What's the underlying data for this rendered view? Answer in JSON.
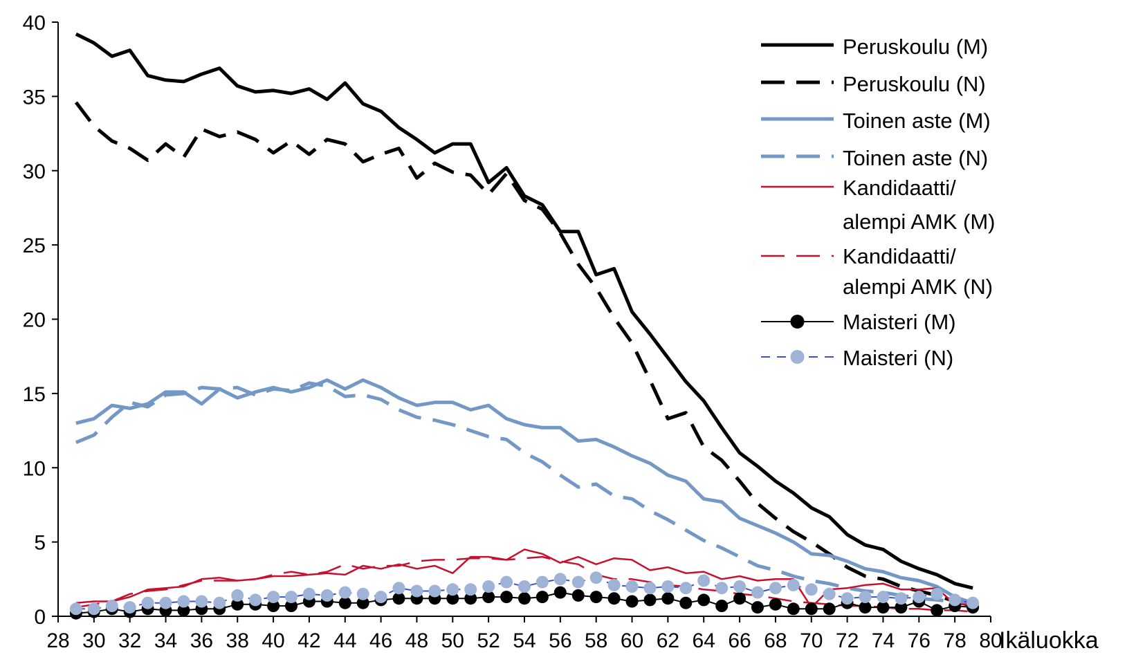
{
  "chart_data": {
    "type": "line",
    "title": "",
    "xlabel": "Ikäluokka",
    "ylabel": "",
    "xlim": [
      28,
      80
    ],
    "ylim": [
      0,
      40
    ],
    "x_ticks": [
      28,
      30,
      32,
      34,
      36,
      38,
      40,
      42,
      44,
      46,
      48,
      50,
      52,
      54,
      56,
      58,
      60,
      62,
      64,
      66,
      68,
      70,
      72,
      74,
      76,
      78,
      80
    ],
    "y_ticks": [
      0,
      5,
      10,
      15,
      20,
      25,
      30,
      35,
      40
    ],
    "grid": false,
    "legend_position": "top-right",
    "x": [
      29,
      30,
      31,
      32,
      33,
      34,
      35,
      36,
      37,
      38,
      39,
      40,
      41,
      42,
      43,
      44,
      45,
      46,
      47,
      48,
      49,
      50,
      51,
      52,
      53,
      54,
      55,
      56,
      57,
      58,
      59,
      60,
      61,
      62,
      63,
      64,
      65,
      66,
      67,
      68,
      69,
      70,
      71,
      72,
      73,
      74,
      75,
      76,
      77,
      78,
      79
    ],
    "series": [
      {
        "name": "Peruskoulu (M)",
        "color": "#000000",
        "dash": "solid",
        "width": 5,
        "marker": "none",
        "values": [
          39.2,
          38.6,
          37.7,
          38.1,
          36.4,
          36.1,
          36.0,
          36.5,
          36.9,
          35.7,
          35.3,
          35.4,
          35.2,
          35.5,
          34.8,
          35.9,
          34.5,
          34.0,
          32.9,
          32.1,
          31.2,
          31.8,
          31.8,
          29.2,
          30.2,
          28.3,
          27.7,
          25.9,
          25.9,
          23.0,
          23.4,
          20.5,
          19.0,
          17.4,
          15.8,
          14.5,
          12.7,
          11.0,
          10.1,
          9.1,
          8.3,
          7.3,
          6.7,
          5.5,
          4.8,
          4.5,
          3.7,
          3.2,
          2.8,
          2.2,
          1.9
        ]
      },
      {
        "name": "Peruskoulu (N)",
        "color": "#000000",
        "dash": "long-dash",
        "width": 5,
        "marker": "none",
        "values": [
          34.6,
          33.0,
          32.0,
          31.5,
          30.7,
          31.8,
          30.9,
          32.8,
          32.3,
          32.6,
          32.1,
          31.2,
          32.0,
          31.1,
          32.1,
          31.8,
          30.6,
          31.1,
          31.5,
          29.5,
          30.5,
          29.9,
          29.7,
          28.4,
          29.8,
          28.0,
          27.4,
          25.8,
          23.7,
          22.1,
          20.1,
          18.4,
          15.9,
          13.3,
          13.7,
          11.4,
          10.5,
          9.1,
          7.6,
          6.6,
          5.7,
          5.0,
          4.2,
          3.3,
          2.7,
          2.5,
          2.0,
          1.7,
          1.4,
          1.0,
          0.7
        ]
      },
      {
        "name": "Toinen aste (M)",
        "color": "#7398c6",
        "dash": "solid",
        "width": 5,
        "marker": "none",
        "values": [
          13.0,
          13.3,
          14.2,
          14.0,
          14.3,
          15.1,
          15.1,
          14.3,
          15.3,
          14.7,
          15.1,
          15.4,
          15.1,
          15.4,
          15.9,
          15.3,
          15.9,
          15.4,
          14.7,
          14.2,
          14.4,
          14.4,
          13.9,
          14.2,
          13.3,
          12.9,
          12.7,
          12.7,
          11.8,
          11.9,
          11.4,
          10.8,
          10.3,
          9.5,
          9.1,
          7.9,
          7.7,
          6.6,
          6.1,
          5.6,
          5.0,
          4.2,
          4.1,
          3.7,
          3.2,
          3.0,
          2.6,
          2.4,
          2.0,
          1.3,
          0.9
        ]
      },
      {
        "name": "Toinen aste (N)",
        "color": "#7398c6",
        "dash": "long-dash",
        "width": 5,
        "marker": "none",
        "values": [
          11.7,
          12.2,
          13.4,
          14.4,
          14.1,
          14.9,
          15.0,
          15.4,
          15.3,
          15.4,
          14.9,
          15.3,
          15.2,
          15.7,
          15.5,
          14.8,
          14.9,
          14.6,
          13.9,
          13.4,
          13.2,
          12.9,
          12.5,
          12.1,
          11.9,
          11.0,
          10.4,
          9.5,
          8.7,
          8.9,
          8.1,
          7.9,
          7.1,
          6.5,
          5.8,
          5.1,
          4.6,
          4.0,
          3.4,
          3.1,
          2.7,
          2.4,
          2.2,
          1.9,
          1.7,
          1.6,
          1.4,
          1.2,
          1.1,
          1.0,
          0.8
        ]
      },
      {
        "name": "Kandidaatti/ alempi AMK (M)",
        "color": "#c8102e",
        "dash": "solid",
        "width": 2.5,
        "marker": "none",
        "values": [
          0.9,
          1.0,
          1.0,
          1.3,
          1.8,
          1.9,
          2.0,
          2.5,
          2.6,
          2.4,
          2.5,
          2.7,
          2.7,
          2.8,
          2.9,
          2.8,
          3.4,
          3.2,
          3.5,
          3.2,
          3.4,
          2.9,
          4.0,
          4.0,
          3.8,
          4.5,
          4.2,
          3.6,
          4.0,
          3.5,
          3.9,
          3.8,
          3.1,
          3.3,
          2.9,
          3.0,
          2.5,
          2.7,
          2.4,
          2.5,
          2.5,
          0.6,
          1.8,
          1.9,
          2.1,
          2.2,
          1.8,
          1.8,
          1.9,
          0.8,
          0.8
        ]
      },
      {
        "name": "Kandidaatti/ alempi AMK (N)",
        "color": "#c8102e",
        "dash": "long-dash",
        "width": 2.5,
        "marker": "none",
        "values": [
          0.6,
          0.8,
          1.0,
          1.5,
          1.7,
          1.8,
          2.1,
          2.4,
          2.4,
          2.4,
          2.5,
          2.8,
          3.0,
          2.8,
          3.0,
          3.5,
          3.2,
          3.4,
          3.4,
          3.7,
          3.8,
          3.8,
          3.9,
          3.9,
          3.8,
          3.9,
          4.0,
          3.7,
          3.5,
          2.8,
          2.5,
          2.5,
          2.3,
          2.1,
          2.0,
          1.8,
          1.7,
          1.5,
          1.4,
          1.2,
          1.0,
          0.9,
          0.8,
          0.7,
          0.7,
          0.6,
          0.5,
          0.5,
          0.4,
          0.4,
          0.3
        ]
      },
      {
        "name": "Maisteri (M)",
        "color": "#000000",
        "dash": "solid",
        "width": 2,
        "marker": "filled",
        "marker_color": "#000000",
        "values": [
          0.2,
          0.3,
          0.5,
          0.3,
          0.5,
          0.4,
          0.4,
          0.5,
          0.5,
          0.8,
          0.8,
          0.7,
          0.7,
          1.0,
          1.0,
          0.9,
          0.9,
          1.1,
          1.2,
          1.2,
          1.2,
          1.2,
          1.2,
          1.3,
          1.3,
          1.2,
          1.3,
          1.6,
          1.4,
          1.3,
          1.2,
          1.0,
          1.1,
          1.2,
          0.9,
          1.1,
          0.7,
          1.2,
          0.6,
          0.8,
          0.5,
          0.5,
          0.5,
          0.9,
          0.6,
          0.6,
          0.6,
          1.0,
          0.4,
          0.7,
          0.6
        ]
      },
      {
        "name": "Maisteri (N)",
        "color": "#3b4fd0",
        "dash": "dash",
        "width": 2,
        "marker": "filled",
        "marker_color": "#9fb3d6",
        "values": [
          0.5,
          0.5,
          0.7,
          0.6,
          0.9,
          0.9,
          1.0,
          1.0,
          0.9,
          1.4,
          1.1,
          1.3,
          1.3,
          1.5,
          1.4,
          1.6,
          1.5,
          1.3,
          1.9,
          1.7,
          1.7,
          1.8,
          1.8,
          2.0,
          2.3,
          2.0,
          2.3,
          2.5,
          2.3,
          2.6,
          2.1,
          2.0,
          1.9,
          2.0,
          1.9,
          2.4,
          1.9,
          2.0,
          1.6,
          1.9,
          2.1,
          1.8,
          1.5,
          1.2,
          1.3,
          1.3,
          1.2,
          1.3,
          1.5,
          1.1,
          0.9
        ]
      }
    ]
  }
}
